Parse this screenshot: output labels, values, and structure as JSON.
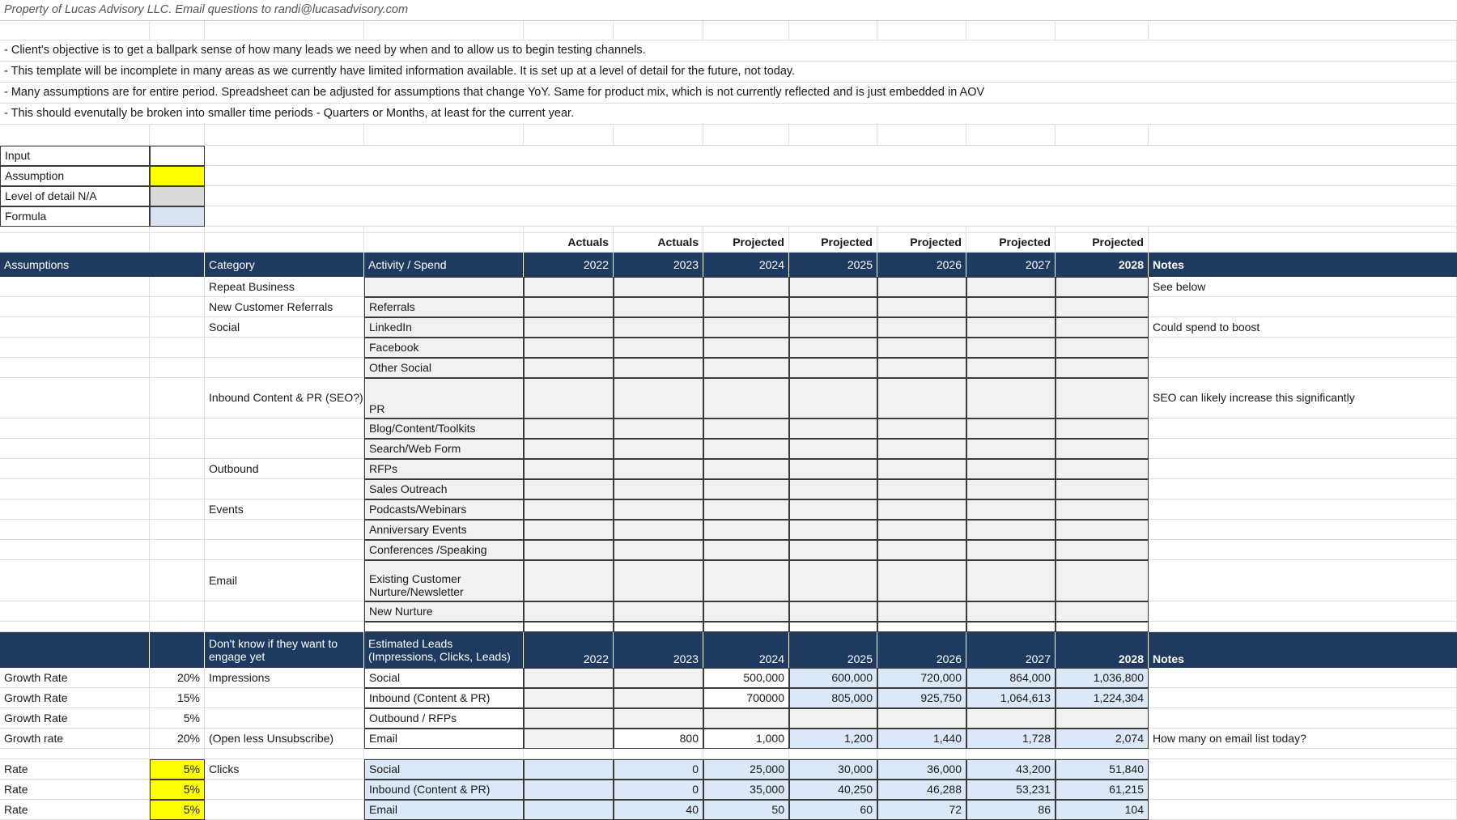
{
  "sheet_title": "Property of Lucas Advisory LLC. Email questions to randi@lucasadvisory.com",
  "intro_notes": [
    "- Client's objective is to get a ballpark sense of how many leads we need by when and to allow us to begin testing channels.",
    "- This template will be incomplete in many areas as we currently have limited information available. It is set up at a level of detail for the future, not today.",
    "- Many assumptions are for entire period. Spreadsheet can be adjusted for assumptions that change YoY. Same for product mix, which is not currently reflected and is just embedded in AOV",
    "- This should evenutally be broken into smaller time periods - Quarters or Months, at least for the current year."
  ],
  "legend": {
    "rows": [
      {
        "label": "Input",
        "swatch": "white"
      },
      {
        "label": "Assumption",
        "swatch": "yellow"
      },
      {
        "label": "Level of detail N/A",
        "swatch": "gray"
      },
      {
        "label": "Formula",
        "swatch": "blue"
      }
    ]
  },
  "colors": {
    "header_navy": "#1e3a60",
    "assumption_yellow": "#ffff00",
    "na_gray": "#d9d9d9",
    "legend_formula_blue": "#d9e2f0",
    "formula_cell_blue": "#dbe8f8",
    "na_cell_gray": "#f1f1ef"
  },
  "period_row": {
    "labels": [
      "Actuals",
      "Actuals",
      "Projected",
      "Projected",
      "Projected",
      "Projected",
      "Projected"
    ]
  },
  "table1": {
    "header": {
      "assumptions": "Assumptions",
      "category": "Category",
      "activity": "Activity / Spend",
      "years": [
        "2022",
        "2023",
        "2024",
        "2025",
        "2026",
        "2027",
        "2028"
      ],
      "notes": "Notes"
    },
    "rows": [
      {
        "category": "Repeat Business",
        "activity": "",
        "note": "See below"
      },
      {
        "category": "New Customer Referrals",
        "activity": "Referrals",
        "note": ""
      },
      {
        "category": "Social",
        "activity": "LinkedIn",
        "note": "Could spend to boost"
      },
      {
        "category": "",
        "activity": "Facebook",
        "note": ""
      },
      {
        "category": "",
        "activity": "Other Social",
        "note": ""
      },
      {
        "category": "Inbound Content & PR (SEO?)",
        "activity": "PR",
        "note": "SEO can likely increase this significantly",
        "tall": true
      },
      {
        "category": "",
        "activity": "Blog/Content/Toolkits",
        "note": ""
      },
      {
        "category": "",
        "activity": "Search/Web Form",
        "note": ""
      },
      {
        "category": "Outbound",
        "activity": "RFPs",
        "note": ""
      },
      {
        "category": "",
        "activity": "Sales Outreach",
        "note": ""
      },
      {
        "category": "Events",
        "activity": "Podcasts/Webinars",
        "note": ""
      },
      {
        "category": "",
        "activity": "Anniversary Events",
        "note": ""
      },
      {
        "category": "",
        "activity": "Conferences /Speaking",
        "note": ""
      },
      {
        "category": "Email",
        "activity": "Existing Customer Nurture/Newsletter",
        "note": "",
        "tall": true
      },
      {
        "category": "",
        "activity": "New Nurture",
        "note": ""
      },
      {
        "category": "",
        "activity": "",
        "note": "",
        "spacer": true
      }
    ]
  },
  "table2": {
    "header": {
      "category": "Don't know if they want to engage yet",
      "activity": "Estimated Leads (Impressions, Clicks, Leads)",
      "years": [
        "2022",
        "2023",
        "2024",
        "2025",
        "2026",
        "2027",
        "2028"
      ],
      "notes": "Notes"
    },
    "growth_rows": [
      {
        "label": "Growth Rate",
        "rate": "20%",
        "group": "Impressions",
        "activity": "Social",
        "values": [
          "",
          "",
          "500,000",
          "600,000",
          "720,000",
          "864,000",
          "1,036,800"
        ],
        "fills": [
          "gray",
          "gray",
          "white",
          "blue",
          "blue",
          "blue",
          "blue"
        ],
        "note": ""
      },
      {
        "label": "Growth Rate",
        "rate": "15%",
        "group": "",
        "activity": "Inbound (Content & PR)",
        "values": [
          "",
          "",
          "700000",
          "805,000",
          "925,750",
          "1,064,613",
          "1,224,304"
        ],
        "fills": [
          "gray",
          "gray",
          "white",
          "blue",
          "blue",
          "blue",
          "blue"
        ],
        "note": ""
      },
      {
        "label": "Growth Rate",
        "rate": "5%",
        "group": "",
        "activity": "Outbound / RFPs",
        "values": [
          "",
          "",
          "",
          "",
          "",
          "",
          ""
        ],
        "fills": [
          "gray",
          "gray",
          "gray",
          "gray",
          "gray",
          "gray",
          "gray"
        ],
        "note": ""
      },
      {
        "label": "Growth rate",
        "rate": "20%",
        "group": "(Open less Unsubscribe)",
        "activity": "Email",
        "values": [
          "",
          "800",
          "1,000",
          "1,200",
          "1,440",
          "1,728",
          "2,074"
        ],
        "fills": [
          "gray",
          "white",
          "white",
          "blue",
          "blue",
          "blue",
          "blue"
        ],
        "note": "How many on email list today?"
      }
    ],
    "rate_rows": [
      {
        "label": "Rate",
        "rate": "5%",
        "group": "Clicks",
        "activity": "Social",
        "values": [
          "",
          "0",
          "25,000",
          "30,000",
          "36,000",
          "43,200",
          "51,840"
        ],
        "note": ""
      },
      {
        "label": "Rate",
        "rate": "5%",
        "group": "",
        "activity": "Inbound (Content & PR)",
        "values": [
          "",
          "0",
          "35,000",
          "40,250",
          "46,288",
          "53,231",
          "61,215"
        ],
        "note": ""
      },
      {
        "label": "Rate",
        "rate": "5%",
        "group": "",
        "activity": "Email",
        "values": [
          "",
          "40",
          "50",
          "60",
          "72",
          "86",
          "104"
        ],
        "note": ""
      }
    ]
  }
}
